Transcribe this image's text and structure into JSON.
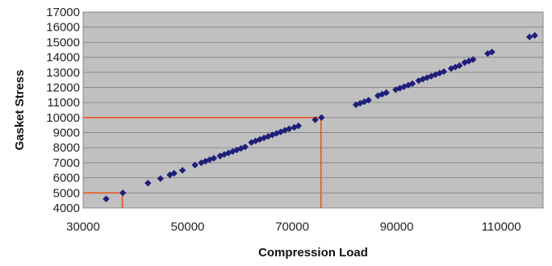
{
  "chart_data": {
    "type": "scatter",
    "title": "",
    "xlabel": "Compression Load",
    "ylabel": "Gasket Stress",
    "xlim": [
      30000,
      118000
    ],
    "ylim": [
      4000,
      17000
    ],
    "x_ticks": [
      30000,
      50000,
      70000,
      90000,
      110000
    ],
    "x_tick_labels": [
      "30000",
      "50000",
      "70000",
      "90000",
      "110000"
    ],
    "y_ticks": [
      4000,
      5000,
      6000,
      7000,
      8000,
      9000,
      10000,
      11000,
      12000,
      13000,
      14000,
      15000,
      16000,
      17000
    ],
    "y_tick_labels": [
      "4000",
      "5000",
      "6000",
      "7000",
      "8000",
      "9000",
      "10000",
      "11000",
      "12000",
      "13000",
      "14000",
      "15000",
      "16000",
      "17000"
    ],
    "grid": "horizontal",
    "legend": "none",
    "colors": {
      "plot_background": "#c0c0c0",
      "marker": "#1f1f7a",
      "reference_lines": "#e8541e",
      "gridlines": "#7f7f7f"
    },
    "reference_points": [
      {
        "x": 37500,
        "y": 5000
      },
      {
        "x": 75500,
        "y": 10000
      }
    ],
    "series": [
      {
        "points": [
          [
            34400,
            4600
          ],
          [
            37600,
            5000
          ],
          [
            42400,
            5650
          ],
          [
            44800,
            5950
          ],
          [
            46600,
            6200
          ],
          [
            47400,
            6300
          ],
          [
            49000,
            6500
          ],
          [
            51400,
            6850
          ],
          [
            52600,
            7000
          ],
          [
            53400,
            7100
          ],
          [
            54200,
            7200
          ],
          [
            55000,
            7300
          ],
          [
            56200,
            7450
          ],
          [
            57000,
            7550
          ],
          [
            57800,
            7650
          ],
          [
            58600,
            7750
          ],
          [
            59400,
            7850
          ],
          [
            60200,
            7950
          ],
          [
            61000,
            8050
          ],
          [
            62200,
            8350
          ],
          [
            63000,
            8450
          ],
          [
            63800,
            8550
          ],
          [
            64600,
            8650
          ],
          [
            65400,
            8750
          ],
          [
            66200,
            8850
          ],
          [
            67000,
            8950
          ],
          [
            67800,
            9050
          ],
          [
            68600,
            9150
          ],
          [
            69400,
            9250
          ],
          [
            70400,
            9350
          ],
          [
            71200,
            9450
          ],
          [
            74400,
            9850
          ],
          [
            75600,
            10000
          ],
          [
            82200,
            10850
          ],
          [
            83000,
            10950
          ],
          [
            83800,
            11050
          ],
          [
            84600,
            11150
          ],
          [
            86400,
            11450
          ],
          [
            87200,
            11550
          ],
          [
            88000,
            11650
          ],
          [
            89800,
            11850
          ],
          [
            90600,
            11950
          ],
          [
            91400,
            12050
          ],
          [
            92200,
            12150
          ],
          [
            93000,
            12250
          ],
          [
            94200,
            12450
          ],
          [
            95000,
            12550
          ],
          [
            95800,
            12650
          ],
          [
            96600,
            12750
          ],
          [
            97400,
            12850
          ],
          [
            98200,
            12950
          ],
          [
            99000,
            13050
          ],
          [
            100400,
            13250
          ],
          [
            101200,
            13350
          ],
          [
            102000,
            13450
          ],
          [
            103000,
            13650
          ],
          [
            103800,
            13750
          ],
          [
            104600,
            13850
          ],
          [
            107400,
            14250
          ],
          [
            108200,
            14350
          ],
          [
            115400,
            15350
          ],
          [
            116400,
            15450
          ]
        ]
      }
    ]
  }
}
